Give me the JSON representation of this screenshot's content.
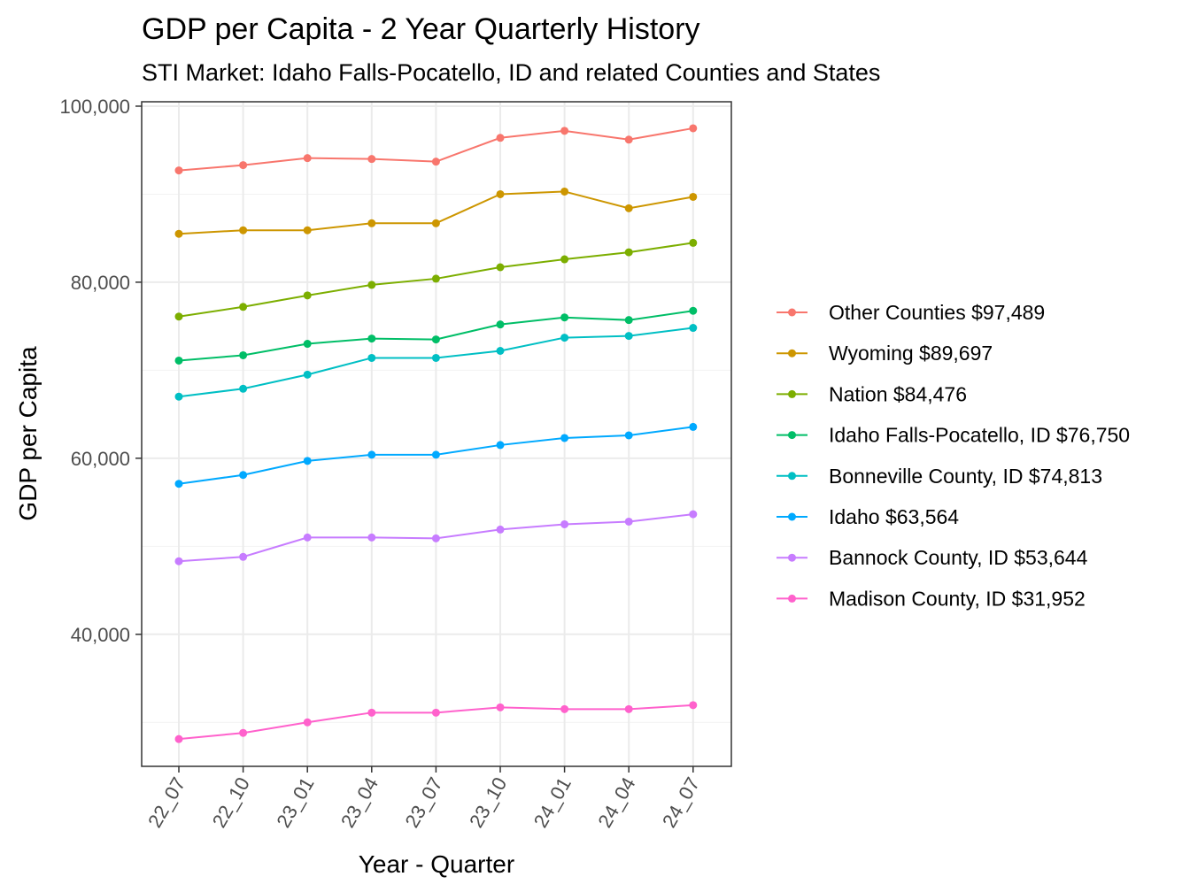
{
  "chart_data": {
    "type": "line",
    "title": "GDP per Capita - 2 Year Quarterly History",
    "subtitle": "STI Market: Idaho Falls-Pocatello, ID and related Counties and States",
    "xlabel": "Year - Quarter",
    "ylabel": "GDP per Capita",
    "categories": [
      "22_07",
      "22_10",
      "23_01",
      "23_04",
      "23_07",
      "23_10",
      "24_01",
      "24_04",
      "24_07"
    ],
    "ylim": [
      25000,
      100500
    ],
    "yticks": [
      40000,
      60000,
      80000,
      100000
    ],
    "ytick_labels": [
      "40,000",
      "60,000",
      "80,000",
      "100,000"
    ],
    "grid": true,
    "legend_position": "right",
    "series": [
      {
        "name": "Other Counties $97,489",
        "color": "#F8766D",
        "values": [
          92700,
          93300,
          94100,
          94000,
          93700,
          96400,
          97200,
          96200,
          97489
        ]
      },
      {
        "name": "Wyoming $89,697",
        "color": "#CD9600",
        "values": [
          85500,
          85900,
          85900,
          86700,
          86700,
          90000,
          90300,
          88400,
          89697
        ]
      },
      {
        "name": "Nation $84,476",
        "color": "#7CAE00",
        "values": [
          76100,
          77200,
          78500,
          79700,
          80400,
          81700,
          82600,
          83400,
          84476
        ]
      },
      {
        "name": "Idaho Falls-Pocatello, ID $76,750",
        "color": "#00BE67",
        "values": [
          71100,
          71700,
          73000,
          73600,
          73500,
          75200,
          76000,
          75700,
          76750
        ]
      },
      {
        "name": "Bonneville County, ID $74,813",
        "color": "#00BFC4",
        "values": [
          67000,
          67900,
          69500,
          71400,
          71400,
          72200,
          73700,
          73900,
          74813
        ]
      },
      {
        "name": "Idaho $63,564",
        "color": "#00A9FF",
        "values": [
          57100,
          58100,
          59700,
          60400,
          60400,
          61500,
          62300,
          62600,
          63564
        ]
      },
      {
        "name": "Bannock County, ID $53,644",
        "color": "#C77CFF",
        "values": [
          48300,
          48800,
          51000,
          51000,
          50900,
          51900,
          52500,
          52800,
          53644
        ]
      },
      {
        "name": "Madison County, ID $31,952",
        "color": "#FF61CC",
        "values": [
          28100,
          28800,
          30000,
          31100,
          31100,
          31700,
          31500,
          31500,
          31952
        ]
      }
    ]
  }
}
